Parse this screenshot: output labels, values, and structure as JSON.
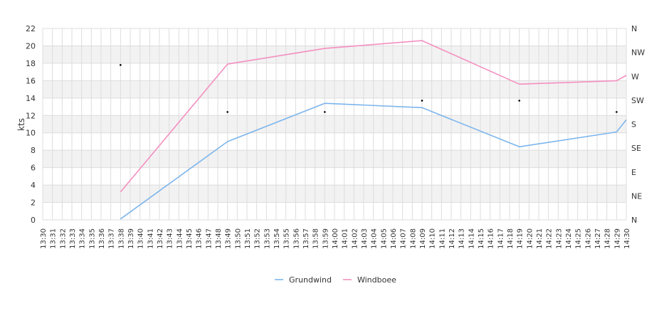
{
  "chart_data": {
    "type": "line",
    "ylabel": "kts",
    "ylim": [
      0,
      22
    ],
    "y_ticks": [
      "0",
      "2",
      "4",
      "6",
      "8",
      "10",
      "12",
      "14",
      "16",
      "18",
      "20",
      "22"
    ],
    "direction_ticks": [
      "N",
      "NE",
      "E",
      "SE",
      "S",
      "SW",
      "W",
      "NW",
      "N"
    ],
    "x_ticks": [
      "13:30",
      "13:31",
      "13:32",
      "13:33",
      "13:34",
      "13:35",
      "13:36",
      "13:37",
      "13:38",
      "13:39",
      "13:40",
      "13:41",
      "13:42",
      "13:43",
      "13:44",
      "13:45",
      "13:46",
      "13:47",
      "13:48",
      "13:49",
      "13:50",
      "13:51",
      "13:52",
      "13:53",
      "13:54",
      "13:55",
      "13:56",
      "13:57",
      "13:58",
      "13:59",
      "14:00",
      "14:01",
      "14:02",
      "14:03",
      "14:04",
      "14:05",
      "14:06",
      "14:07",
      "14:08",
      "14:09",
      "14:10",
      "14:11",
      "14:12",
      "14:13",
      "14:14",
      "14:15",
      "14:16",
      "14:17",
      "14:18",
      "14:19",
      "14:20",
      "14:21",
      "14:22",
      "14:23",
      "14:24",
      "14:25",
      "14:26",
      "14:27",
      "14:28",
      "14:29",
      "14:30"
    ],
    "grid": true,
    "legend_position": "bottom-center",
    "series": [
      {
        "name": "Grundwind",
        "color": "#7cb5ec",
        "x": [
          "13:38",
          "13:49",
          "13:59",
          "14:09",
          "14:19",
          "14:29",
          "14:30"
        ],
        "values": [
          0.1,
          9.0,
          13.4,
          12.9,
          8.4,
          10.1,
          11.5
        ]
      },
      {
        "name": "Windboee",
        "color": "#f48fbf",
        "x": [
          "13:38",
          "13:49",
          "13:59",
          "14:09",
          "14:19",
          "14:29",
          "14:30"
        ],
        "values": [
          3.2,
          17.9,
          19.7,
          20.6,
          15.6,
          16.0,
          16.6
        ]
      },
      {
        "name": "",
        "type": "scatter",
        "color": "#000000",
        "x": [
          "13:38",
          "13:49",
          "13:59",
          "14:09",
          "14:19",
          "14:29"
        ],
        "values": [
          17.8,
          12.4,
          12.4,
          13.7,
          13.7,
          12.4
        ]
      }
    ]
  }
}
